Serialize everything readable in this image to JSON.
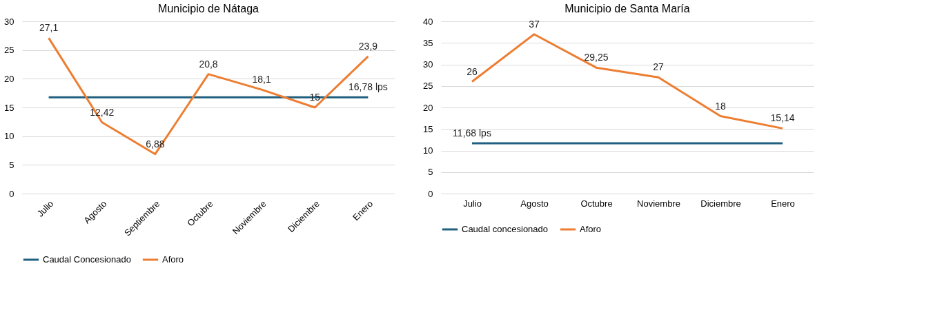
{
  "chart_data": [
    {
      "type": "line",
      "title": "Municipio de Nátaga",
      "categories": [
        "Julio",
        "Agosto",
        "Septiembre",
        "Octubre",
        "Noviembre",
        "Diciembre",
        "Enero"
      ],
      "ylim": [
        0,
        30
      ],
      "yticks": [
        0,
        5,
        10,
        15,
        20,
        25,
        30
      ],
      "grid": "y",
      "legend": "bottom",
      "marker": "none",
      "line_style": "solid",
      "series": [
        {
          "name": "Caudal Concesionado",
          "color": "#1f5f7f",
          "values": [
            16.78,
            16.78,
            16.78,
            16.78,
            16.78,
            16.78,
            16.78
          ],
          "value_labels": [
            null,
            null,
            null,
            null,
            null,
            null,
            "16,78 lps"
          ]
        },
        {
          "name": "Aforo",
          "color": "#ed7d31",
          "values": [
            27.1,
            12.42,
            6.88,
            20.8,
            18.1,
            15,
            23.9
          ],
          "value_labels": [
            "27,1",
            "12,42",
            "6,88",
            "20,8",
            "18,1",
            "15",
            "23,9"
          ]
        }
      ]
    },
    {
      "type": "line",
      "title": "Municipio de Santa María",
      "categories": [
        "Julio",
        "Agosto",
        "Octubre",
        "Noviembre",
        "Diciembre",
        "Enero"
      ],
      "ylim": [
        0,
        40
      ],
      "yticks": [
        0,
        5,
        10,
        15,
        20,
        25,
        30,
        35,
        40
      ],
      "grid": "y",
      "legend": "bottom",
      "marker": "none",
      "line_style": "solid",
      "series": [
        {
          "name": "Caudal concesionado",
          "color": "#1f5f7f",
          "values": [
            11.68,
            11.68,
            11.68,
            11.68,
            11.68,
            11.68
          ],
          "value_labels": [
            "11,68 lps",
            null,
            null,
            null,
            null,
            null
          ]
        },
        {
          "name": "Aforo",
          "color": "#ed7d31",
          "values": [
            26,
            37,
            29.25,
            27,
            18,
            15.14
          ],
          "value_labels": [
            "26",
            "37",
            "29,25",
            "27",
            "18",
            "15,14"
          ]
        }
      ]
    }
  ]
}
